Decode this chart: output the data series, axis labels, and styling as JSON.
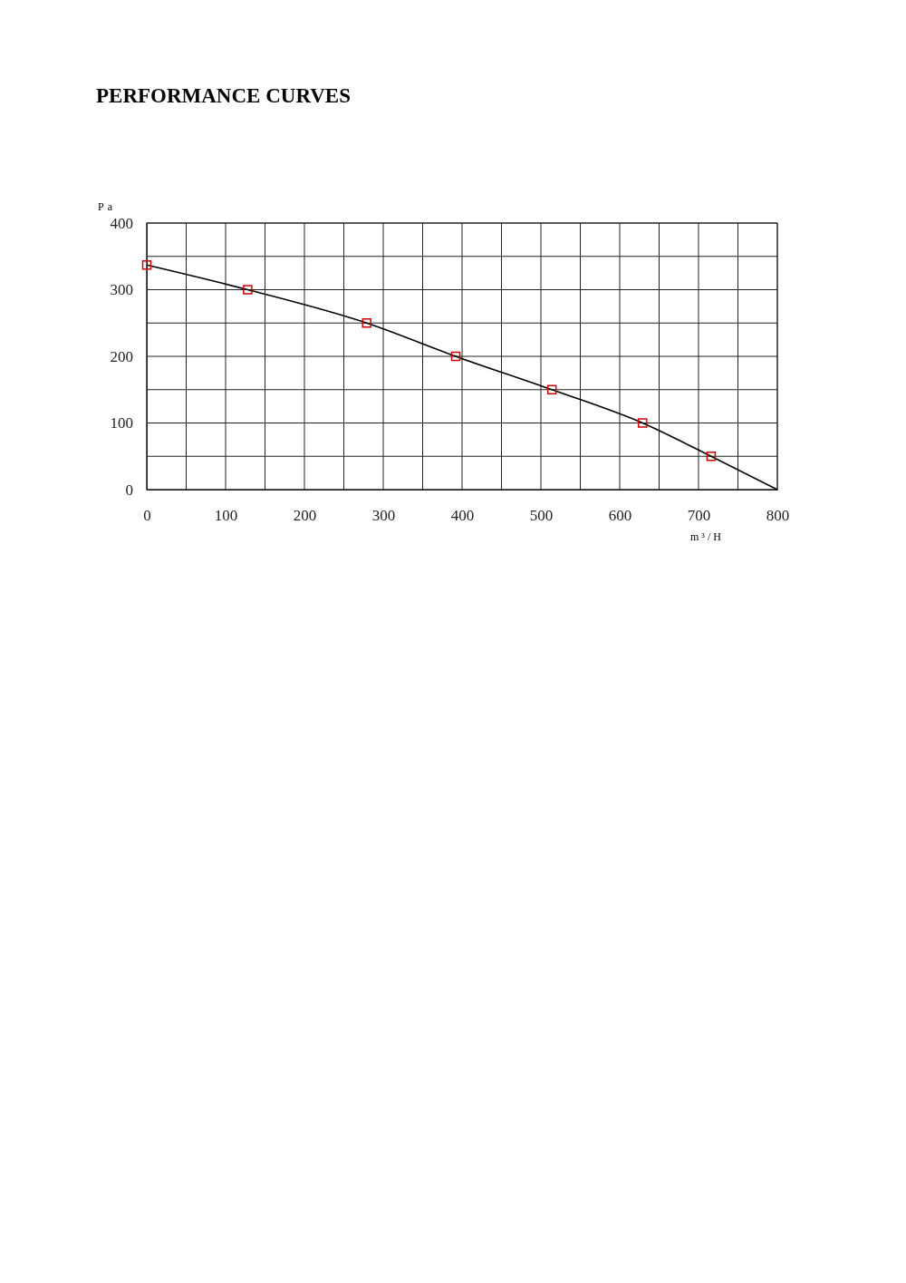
{
  "chart_data": {
    "type": "line",
    "title": "PERFORMANCE CURVES",
    "xlabel": "m³/H",
    "ylabel": "Pa",
    "xlim": [
      0,
      800
    ],
    "ylim": [
      0,
      400
    ],
    "xticks": [
      0,
      {
        "value": 50,
        "label": null
      },
      100,
      {
        "value": 150,
        "label": null
      },
      200,
      {
        "value": 250,
        "label": null
      },
      300,
      {
        "value": 350,
        "label": null
      },
      400,
      {
        "value": 450,
        "label": null
      },
      500,
      {
        "value": 550,
        "label": null
      },
      600,
      {
        "value": 650,
        "label": null
      },
      700,
      {
        "value": 750,
        "label": null
      },
      800
    ],
    "yticks": [
      0,
      {
        "value": 50,
        "label": null
      },
      100,
      {
        "value": 150,
        "label": null
      },
      200,
      {
        "value": 250,
        "label": null
      },
      300,
      {
        "value": 350,
        "label": null
      },
      400
    ],
    "grid": true,
    "series": [
      {
        "type": "line",
        "color": "#000000",
        "marker": "none",
        "line_style": "solid",
        "x": [
          0,
          128,
          279,
          392,
          514,
          629,
          716,
          800
        ],
        "values": [
          337,
          300,
          250,
          200,
          150,
          100,
          50,
          0
        ]
      },
      {
        "type": "scatter",
        "color": "#d00000",
        "marker": "square",
        "x": [
          0,
          128,
          279,
          392,
          514,
          629,
          716
        ],
        "values": [
          337,
          300,
          250,
          200,
          150,
          100,
          50
        ]
      }
    ]
  }
}
